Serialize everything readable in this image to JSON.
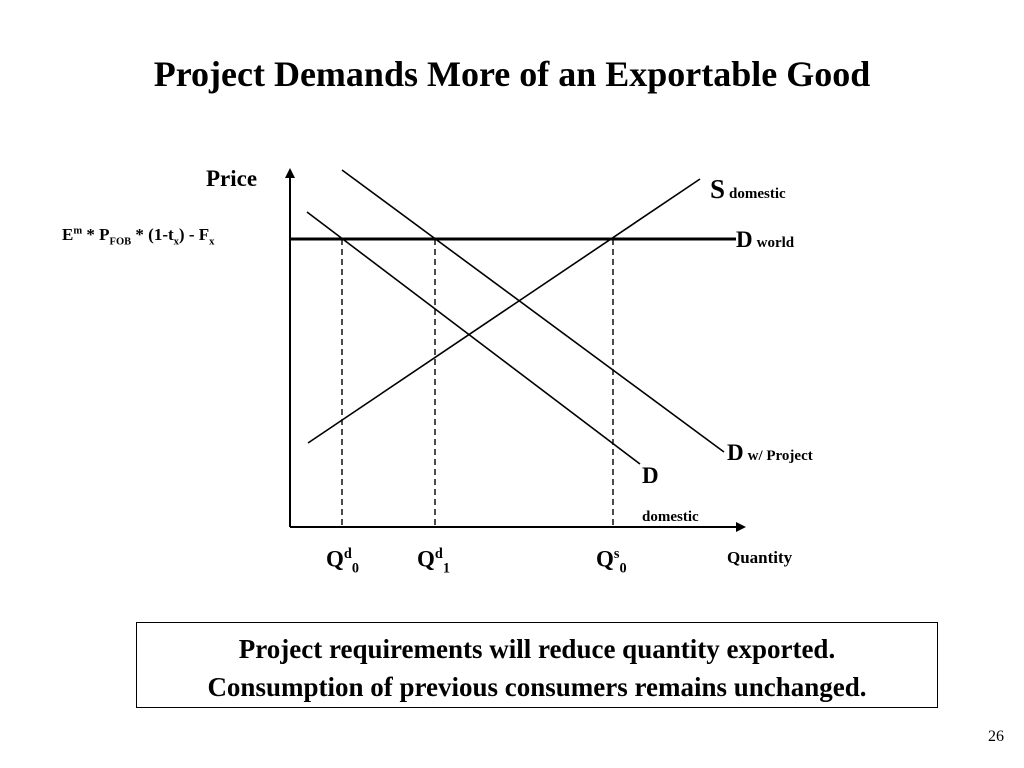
{
  "slide": {
    "title": "Project Demands More of an Exportable Good",
    "page_number": "26"
  },
  "diagram": {
    "axes": {
      "y_label": "Price",
      "x_label": "Quantity"
    },
    "price_line": {
      "parts": [
        "E",
        "m",
        " * P",
        "FOB",
        " * (1-t",
        "x",
        ") - F",
        "x"
      ]
    },
    "curves": {
      "supply": {
        "main": "S",
        "sub": "domestic"
      },
      "world_price": {
        "main": "D",
        "sub": "world"
      },
      "demand_project": {
        "main": "D",
        "sub": "w/ Project"
      },
      "demand_domestic": {
        "main": "D",
        "sub": "domestic"
      }
    },
    "quantities": [
      {
        "base": "Q",
        "sup": "d",
        "sub": "0"
      },
      {
        "base": "Q",
        "sup": "d",
        "sub": "1"
      },
      {
        "base": "Q",
        "sup": "s",
        "sub": "0"
      }
    ]
  },
  "callout": {
    "line1": "Project requirements will reduce quantity exported.",
    "line2": "Consumption of previous consumers remains unchanged."
  }
}
